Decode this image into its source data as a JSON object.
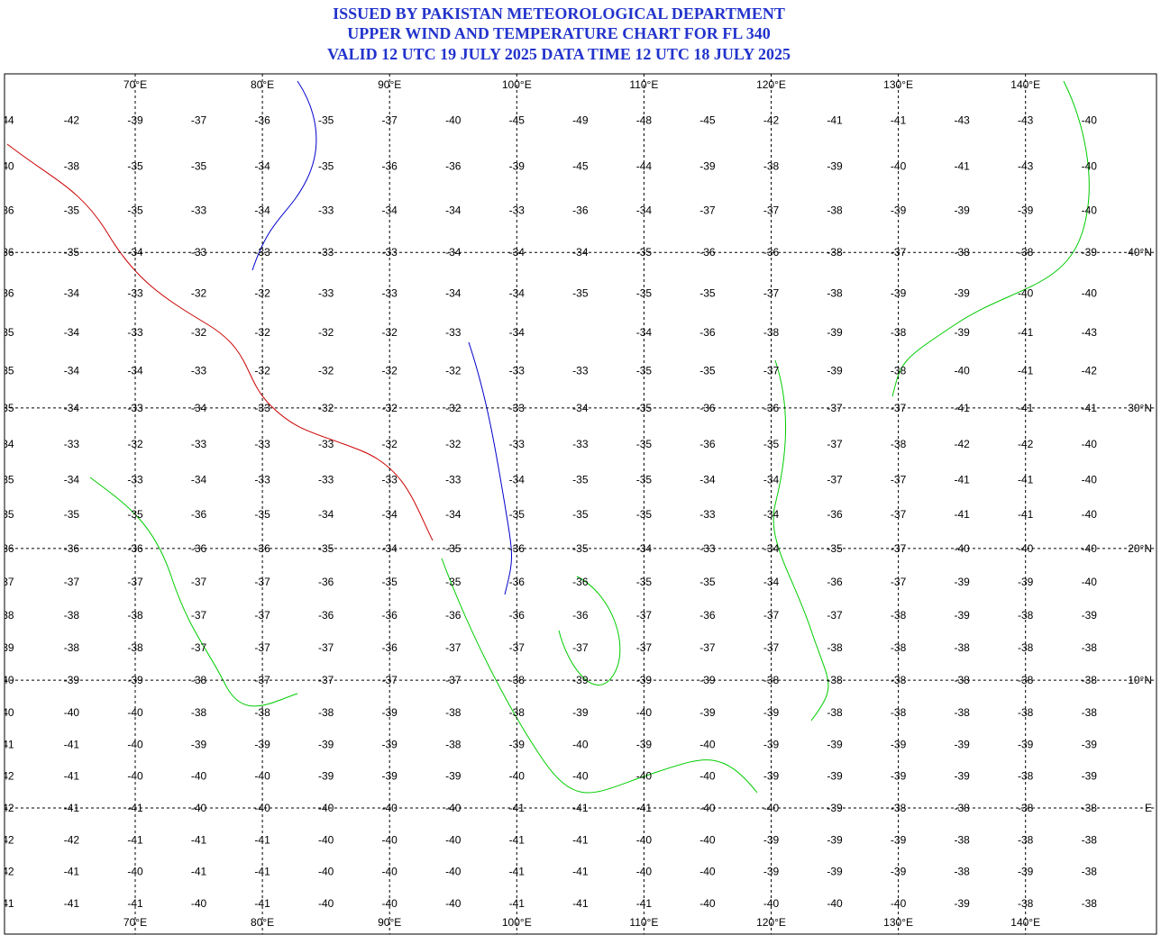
{
  "titles": [
    "ISSUED BY PAKISTAN METEOROLOGICAL DEPARTMENT",
    "UPPER WIND AND TEMPERATURE CHART FOR FL 340",
    "VALID 12 UTC 19 JULY 2025 DATA TIME 12 UTC 18 JULY 2025"
  ],
  "longitudes": [
    {
      "value": 70,
      "label": "70°E"
    },
    {
      "value": 80,
      "label": "80°E"
    },
    {
      "value": 90,
      "label": "90°E"
    },
    {
      "value": 100,
      "label": "100°E"
    },
    {
      "value": 110,
      "label": "110°E"
    },
    {
      "value": 120,
      "label": "120°E"
    },
    {
      "value": 130,
      "label": "130°E"
    },
    {
      "value": 140,
      "label": "140°E"
    }
  ],
  "latitudes": [
    {
      "value": 40,
      "label": "40°N"
    },
    {
      "value": 30,
      "label": "30°N"
    },
    {
      "value": 20,
      "label": "20°N"
    },
    {
      "value": 10,
      "label": "10°N"
    },
    {
      "value": 0,
      "label": "E"
    }
  ],
  "temperature_grid": [
    [
      44,
      -42,
      -39,
      -37,
      -36,
      -35,
      -37,
      -40,
      -45,
      -49,
      -48,
      -45,
      -42,
      -41,
      -41,
      -43,
      -43,
      -40
    ],
    [
      40,
      -38,
      -35,
      -35,
      -34,
      -35,
      -36,
      -36,
      -39,
      -45,
      -44,
      -39,
      -38,
      -39,
      -40,
      -41,
      -43,
      -40
    ],
    [
      36,
      -35,
      -35,
      -33,
      -34,
      -33,
      -34,
      -34,
      -33,
      -36,
      -34,
      -37,
      -37,
      -38,
      -39,
      -39,
      -39,
      -40
    ],
    [
      36,
      -35,
      -34,
      -33,
      -33,
      -33,
      -33,
      -34,
      -34,
      -34,
      -35,
      -36,
      -36,
      -38,
      -37,
      -38,
      -38,
      -39
    ],
    [
      36,
      -34,
      -33,
      -32,
      -32,
      -33,
      -33,
      -34,
      -34,
      -35,
      -35,
      -35,
      -37,
      -38,
      -39,
      -39,
      -40,
      -40
    ],
    [
      35,
      -34,
      -33,
      -32,
      -32,
      -32,
      -32,
      -33,
      -34,
      null,
      -34,
      -36,
      -38,
      -39,
      -38,
      -39,
      -41,
      -43
    ],
    [
      35,
      -34,
      -34,
      -33,
      -32,
      -32,
      -32,
      -32,
      -33,
      -33,
      -35,
      -35,
      -37,
      -39,
      -38,
      -40,
      -41,
      -42
    ],
    [
      35,
      -34,
      -33,
      -34,
      -33,
      -32,
      -32,
      -32,
      -33,
      -34,
      -35,
      -36,
      -36,
      -37,
      -37,
      -41,
      -41,
      -41
    ],
    [
      34,
      -33,
      -32,
      -33,
      -33,
      -33,
      -32,
      -32,
      -33,
      -33,
      -35,
      -36,
      -35,
      -37,
      -38,
      -42,
      -42,
      -40
    ],
    [
      35,
      -34,
      -33,
      -34,
      -33,
      -33,
      -33,
      -33,
      -34,
      -35,
      -35,
      -34,
      -34,
      -37,
      -37,
      -41,
      -41,
      -40
    ],
    [
      35,
      -35,
      -35,
      -36,
      -35,
      -34,
      -34,
      -34,
      -35,
      -35,
      -35,
      -33,
      -34,
      -36,
      -37,
      -41,
      -41,
      -40
    ],
    [
      36,
      -36,
      -36,
      -36,
      -36,
      -35,
      -34,
      -35,
      -36,
      -35,
      -34,
      -33,
      -34,
      -35,
      -37,
      -40,
      -40,
      -40
    ],
    [
      37,
      -37,
      -37,
      -37,
      -37,
      -36,
      -35,
      -35,
      -36,
      -36,
      -35,
      -35,
      -34,
      -36,
      -37,
      -39,
      -39,
      -40
    ],
    [
      38,
      -38,
      -38,
      -37,
      -37,
      -36,
      -36,
      -36,
      -36,
      -36,
      -37,
      -36,
      -37,
      -37,
      -38,
      -39,
      -38,
      -39
    ],
    [
      39,
      -38,
      -38,
      -37,
      -37,
      -37,
      -36,
      -37,
      -37,
      -37,
      -37,
      -37,
      -37,
      -38,
      -38,
      -38,
      -38,
      -38
    ],
    [
      40,
      -39,
      -39,
      -38,
      -37,
      -37,
      -37,
      -37,
      -38,
      -39,
      -39,
      -39,
      -38,
      -38,
      -38,
      -38,
      -38,
      -38
    ],
    [
      40,
      -40,
      -40,
      -38,
      -38,
      -38,
      -39,
      -38,
      -38,
      -39,
      -40,
      -39,
      -39,
      -38,
      -38,
      -38,
      -38,
      -38
    ],
    [
      41,
      -41,
      -40,
      -39,
      -39,
      -39,
      -39,
      -38,
      -39,
      -40,
      -39,
      -40,
      -39,
      -39,
      -39,
      -39,
      -39,
      -39
    ],
    [
      42,
      -41,
      -40,
      -40,
      -40,
      -39,
      -39,
      -39,
      -40,
      -40,
      -40,
      -40,
      -39,
      -39,
      -39,
      -39,
      -38,
      -39
    ],
    [
      42,
      -41,
      -41,
      -40,
      -40,
      -40,
      -40,
      -40,
      -41,
      -41,
      -41,
      -40,
      -40,
      -39,
      -38,
      -38,
      -38,
      -38
    ],
    [
      42,
      -42,
      -41,
      -41,
      -41,
      -40,
      -40,
      -40,
      -41,
      -41,
      -40,
      -40,
      -39,
      -39,
      -39,
      -38,
      -38,
      -38
    ],
    [
      42,
      -41,
      -40,
      -41,
      -41,
      -40,
      -40,
      -40,
      -41,
      -41,
      -40,
      -40,
      -39,
      -39,
      -39,
      -38,
      -39,
      -38
    ],
    [
      41,
      -41,
      -41,
      -40,
      -41,
      -40,
      -40,
      -40,
      -41,
      -41,
      -41,
      -40,
      -40,
      -40,
      -40,
      -39,
      -38,
      -38
    ]
  ]
}
